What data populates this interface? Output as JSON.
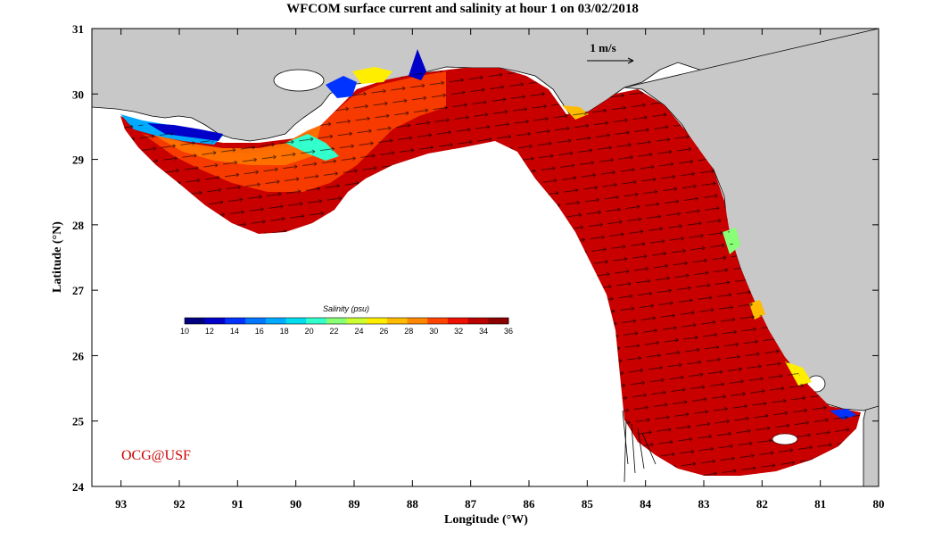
{
  "title": "WFCOM surface current and salinity at hour 1 on 03/02/2018",
  "axes": {
    "xlabel": "Longitude (°W)",
    "ylabel": "Latitude (°N)",
    "x_ticks": [
      "93",
      "92",
      "91",
      "90",
      "89",
      "88",
      "87",
      "86",
      "85",
      "84",
      "83",
      "82",
      "81",
      "80"
    ],
    "y_ticks": [
      "31",
      "30",
      "29",
      "28",
      "27",
      "26",
      "25",
      "24"
    ],
    "xlim": [
      93.5,
      80
    ],
    "ylim": [
      24,
      31
    ]
  },
  "colorbar": {
    "title": "Salinity (psu)",
    "ticks": [
      "10",
      "12",
      "14",
      "16",
      "18",
      "20",
      "22",
      "24",
      "26",
      "28",
      "30",
      "32",
      "34",
      "36"
    ],
    "colors": [
      "#00007f",
      "#0000c8",
      "#0033ff",
      "#0077ff",
      "#00aaff",
      "#00ddee",
      "#33ffcc",
      "#88ff77",
      "#ccff33",
      "#ffee00",
      "#ffbb00",
      "#ff8800",
      "#ff4400",
      "#ee1100",
      "#bb0000",
      "#8b0000"
    ]
  },
  "scale_vector": {
    "label": "1 m/s"
  },
  "credit": "OCG@USF",
  "colors": {
    "land": "#c8c8c8",
    "ocean_high_salinity": "#c00000",
    "ocean_mid": "#ff3300",
    "arrows": "#000000"
  }
}
